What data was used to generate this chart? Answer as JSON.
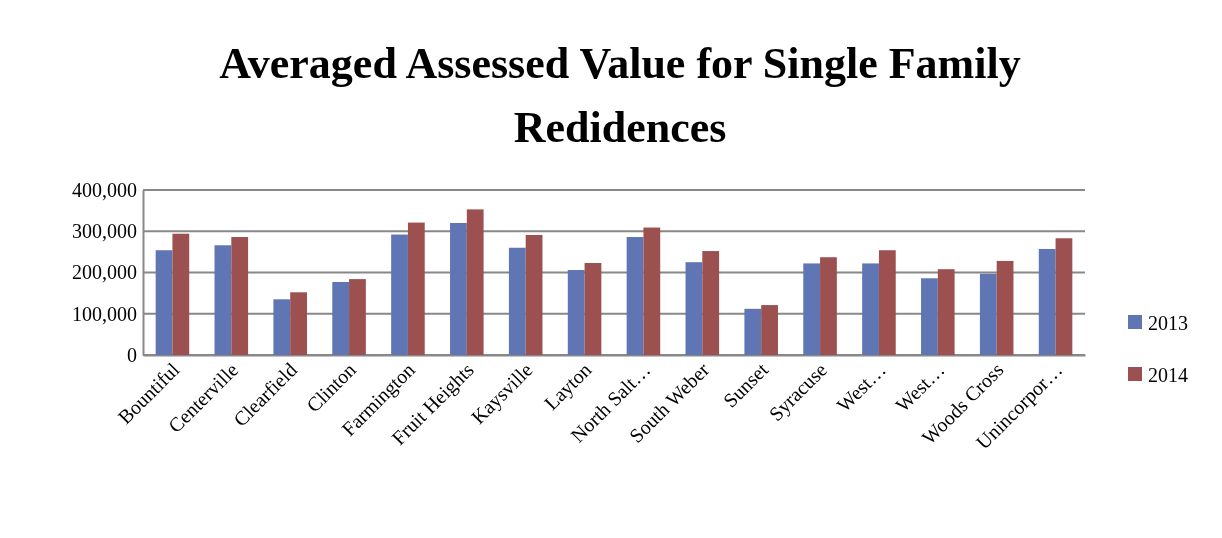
{
  "chart_data": {
    "type": "bar",
    "title": "Averaged Assessed Value for Single Family Redidences",
    "categories": [
      "Bountiful",
      "Centerville",
      "Clearfield",
      "Clinton",
      "Farmington",
      "Fruit Heights",
      "Kaysville",
      "Layton",
      "North Salt…",
      "South Weber",
      "Sunset",
      "Syracuse",
      "West…",
      "West…",
      "Woods Cross",
      "Unincorpor…"
    ],
    "series": [
      {
        "name": "2013",
        "color": "#6076b4",
        "values": [
          254000,
          266000,
          135000,
          177000,
          292000,
          320000,
          260000,
          206000,
          286000,
          225000,
          112000,
          222000,
          222000,
          186000,
          197000,
          257000
        ]
      },
      {
        "name": "2014",
        "color": "#9c5050",
        "values": [
          294000,
          286000,
          152000,
          184000,
          321000,
          353000,
          291000,
          223000,
          309000,
          252000,
          121000,
          237000,
          254000,
          208000,
          228000,
          283000
        ]
      }
    ],
    "ylim": [
      0,
      400000
    ],
    "yticks": [
      0,
      {
        "value": 100000,
        "label": "100,000"
      },
      {
        "value": 200000,
        "label": "200,000"
      },
      {
        "value": 300000,
        "label": "300,000"
      },
      {
        "value": 400000,
        "label": "400,000"
      }
    ],
    "grid": "y",
    "legend": "right"
  }
}
